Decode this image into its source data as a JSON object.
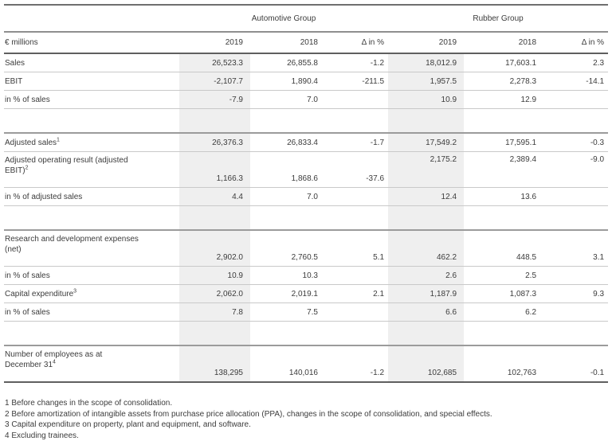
{
  "table": {
    "unit_label": "€ millions",
    "groups": {
      "automotive": "Automotive Group",
      "rubber": "Rubber Group"
    },
    "columns": [
      "2019",
      "2018",
      "Δ in %",
      "2019",
      "2018",
      "Δ in %"
    ],
    "rows": {
      "sales": {
        "label": "Sales",
        "values": [
          "26,523.3",
          "26,855.8",
          "-1.2",
          "18,012.9",
          "17,603.1",
          "2.3"
        ]
      },
      "ebit": {
        "label": "EBIT",
        "values": [
          "-2,107.7",
          "1,890.4",
          "-211.5",
          "1,957.5",
          "2,278.3",
          "-14.1"
        ]
      },
      "ebit_pct": {
        "label": "in % of sales",
        "values": [
          "-7.9",
          "7.0",
          "",
          "10.9",
          "12.9",
          ""
        ]
      },
      "adjusted_sales": {
        "label": "Adjusted sales",
        "sup": "1",
        "values": [
          "26,376.3",
          "26,833.4",
          "-1.7",
          "17,549.2",
          "17,595.1",
          "-0.3"
        ]
      },
      "adjusted_ebit": {
        "label_line1": "Adjusted operating result (adjusted",
        "label_line2": "EBIT)",
        "sup": "2",
        "values": [
          "1,166.3",
          "1,868.6",
          "-37.6",
          "2,175.2",
          "2,389.4",
          "-9.0"
        ]
      },
      "adjusted_ebit_pct": {
        "label": "in % of adjusted sales",
        "values": [
          "4.4",
          "7.0",
          "",
          "12.4",
          "13.6",
          ""
        ]
      },
      "rnd_expenses": {
        "label_line1": "Research and development expenses",
        "label_line2": "(net)",
        "values": [
          "2,902.0",
          "2,760.5",
          "5.1",
          "462.2",
          "448.5",
          "3.1"
        ]
      },
      "rnd_pct": {
        "label": "in % of sales",
        "values": [
          "10.9",
          "10.3",
          "",
          "2.6",
          "2.5",
          ""
        ]
      },
      "capex": {
        "label": "Capital expenditure",
        "sup": "3",
        "values": [
          "2,062.0",
          "2,019.1",
          "2.1",
          "1,187.9",
          "1,087.3",
          "9.3"
        ]
      },
      "capex_pct": {
        "label": "in % of sales",
        "values": [
          "7.8",
          "7.5",
          "",
          "6.6",
          "6.2",
          ""
        ]
      },
      "employees": {
        "label_line1": "Number of employees as at",
        "label_line2": "December 31",
        "sup": "4",
        "values": [
          "138,295",
          "140,016",
          "-1.2",
          "102,685",
          "102,763",
          "-0.1"
        ]
      }
    }
  },
  "footnotes": [
    "1 Before changes in the scope of consolidation.",
    "2 Before amortization of intangible assets from purchase price allocation (PPA), changes in the scope of consolidation, and special effects.",
    "3 Capital expenditure on property, plant and equipment, and software.",
    "4 Excluding trainees."
  ],
  "colors": {
    "column_shade": "#efefef",
    "heavy_line": "#9b9b9b",
    "dark_line": "#5f5f5f",
    "light_line": "#c9c9c9",
    "text": "#3c3c3c"
  }
}
